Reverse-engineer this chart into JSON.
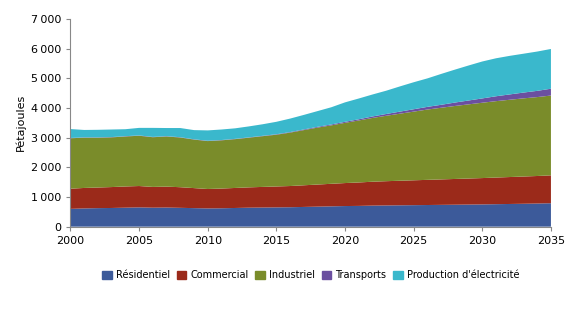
{
  "ylabel": "Pétajoules",
  "ylim": [
    0,
    7000
  ],
  "yticks": [
    0,
    1000,
    2000,
    3000,
    4000,
    5000,
    6000,
    7000
  ],
  "xlim": [
    2000,
    2035
  ],
  "xticks": [
    2000,
    2005,
    2010,
    2015,
    2020,
    2025,
    2030,
    2035
  ],
  "years": [
    2000,
    2001,
    2002,
    2003,
    2004,
    2005,
    2006,
    2007,
    2008,
    2009,
    2010,
    2011,
    2012,
    2013,
    2014,
    2015,
    2016,
    2017,
    2018,
    2019,
    2020,
    2021,
    2022,
    2023,
    2024,
    2025,
    2026,
    2027,
    2028,
    2029,
    2030,
    2031,
    2032,
    2033,
    2034,
    2035
  ],
  "residentiel": [
    600,
    615,
    625,
    630,
    640,
    650,
    640,
    645,
    635,
    625,
    615,
    620,
    630,
    640,
    645,
    650,
    655,
    665,
    675,
    685,
    695,
    700,
    710,
    715,
    720,
    725,
    730,
    735,
    740,
    745,
    750,
    758,
    765,
    772,
    780,
    790
  ],
  "commercial": [
    680,
    690,
    695,
    705,
    715,
    720,
    700,
    705,
    695,
    675,
    655,
    665,
    675,
    685,
    695,
    705,
    715,
    730,
    745,
    760,
    775,
    790,
    805,
    818,
    828,
    838,
    848,
    858,
    868,
    878,
    888,
    898,
    908,
    918,
    928,
    940
  ],
  "industriel": [
    1700,
    1695,
    1680,
    1675,
    1685,
    1695,
    1675,
    1690,
    1675,
    1635,
    1615,
    1625,
    1645,
    1675,
    1710,
    1745,
    1800,
    1860,
    1920,
    1970,
    2030,
    2090,
    2150,
    2205,
    2260,
    2315,
    2370,
    2415,
    2460,
    2500,
    2540,
    2575,
    2605,
    2635,
    2660,
    2690
  ],
  "transports": [
    10,
    10,
    10,
    10,
    10,
    10,
    10,
    10,
    10,
    10,
    10,
    10,
    10,
    10,
    12,
    15,
    18,
    22,
    26,
    30,
    35,
    40,
    50,
    60,
    70,
    80,
    90,
    100,
    115,
    130,
    145,
    165,
    180,
    195,
    210,
    230
  ],
  "electricite": [
    300,
    250,
    255,
    255,
    235,
    255,
    305,
    275,
    310,
    310,
    350,
    355,
    355,
    370,
    390,
    420,
    455,
    490,
    530,
    580,
    655,
    700,
    740,
    785,
    850,
    910,
    960,
    1040,
    1110,
    1180,
    1245,
    1280,
    1300,
    1310,
    1325,
    1340
  ],
  "colors": {
    "residentiel": "#3c5a9a",
    "commercial": "#9b2a1a",
    "industriel": "#7a8c2a",
    "transports": "#6b4fa0",
    "electricite": "#3ab8cc"
  },
  "legend_labels": [
    "Résidentiel",
    "Commercial",
    "Industriel",
    "Transports",
    "Production d'électricité"
  ],
  "background_color": "#ffffff"
}
